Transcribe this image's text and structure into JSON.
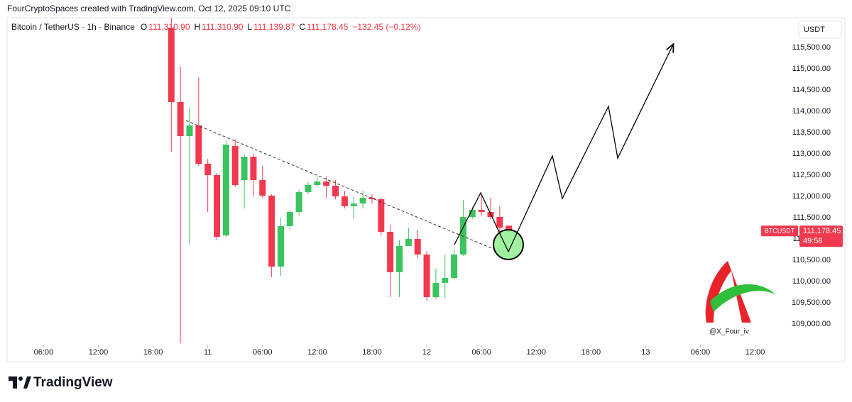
{
  "chart_data": {
    "type": "candlestick",
    "credit": "FourCryptoSpaces created with TradingView.com, Oct 12, 2025 09:10 UTC",
    "symbol": "Bitcoin / TetherUS · 1h · Binance",
    "ohlc_labels": [
      "O",
      "H",
      "L",
      "C"
    ],
    "ohlc_values": [
      "111,310.90",
      "111,310.90",
      "111,139.87",
      "111,178.45"
    ],
    "change": "−132.45 (−0.12%)",
    "currency": "USDT",
    "ticker": "BTCUSDT",
    "last_price": {
      "value": 111178.45,
      "label": "111,178.45"
    },
    "countdown": "49:58",
    "watermark": "@X_Four_iv",
    "brand": "TradingView",
    "up_color": "#3cc35e",
    "down_color": "#f0394f",
    "x": [
      20,
      21,
      22,
      23,
      24,
      25,
      26,
      27,
      28,
      29,
      30,
      31,
      32,
      33,
      34,
      35,
      36,
      37,
      38,
      39,
      40,
      41,
      42,
      43,
      44,
      45,
      46,
      47,
      48,
      49,
      50,
      51,
      52,
      53,
      54,
      55,
      56,
      57
    ],
    "open": [
      115966,
      114217,
      113417,
      113667,
      112767,
      112500,
      111083,
      113183,
      112383,
      112933,
      112383,
      112017,
      110350,
      111300,
      111633,
      112100,
      112267,
      112350,
      112250,
      112000,
      111767,
      111833,
      111967,
      111933,
      111167,
      110217,
      110833,
      111000,
      110633,
      109633,
      109967,
      110083,
      110633,
      111517,
      111683,
      111633,
      111517,
      111310.9
    ],
    "high": [
      116217,
      115050,
      114100,
      114800,
      112883,
      112550,
      113300,
      113350,
      113000,
      113000,
      112717,
      112050,
      111500,
      111667,
      112167,
      112333,
      112467,
      112467,
      112383,
      112133,
      112000,
      112133,
      112050,
      111967,
      111333,
      110967,
      111267,
      111217,
      110717,
      110300,
      110633,
      110750,
      111917,
      111767,
      112050,
      111967,
      111767,
      111310.9
    ],
    "low": [
      113050,
      108550,
      110850,
      112717,
      111633,
      110967,
      111050,
      112217,
      111717,
      112000,
      111967,
      110100,
      110133,
      111217,
      111550,
      112050,
      112217,
      111967,
      111933,
      111717,
      111467,
      111717,
      111833,
      111083,
      109633,
      109633,
      110883,
      110550,
      109550,
      109583,
      109600,
      110050,
      110600,
      111467,
      111550,
      111467,
      111167,
      111139.87
    ],
    "close": [
      114217,
      113417,
      113667,
      112767,
      112500,
      111050,
      113217,
      112267,
      112933,
      112383,
      112017,
      110350,
      111300,
      111633,
      112100,
      112267,
      112350,
      112250,
      112000,
      111767,
      111833,
      111967,
      111933,
      111167,
      110217,
      110833,
      111000,
      110633,
      109633,
      109967,
      110083,
      110633,
      111517,
      111683,
      111633,
      111517,
      111267,
      111178.45
    ],
    "xlim": [
      2,
      88
    ],
    "xticks": [
      {
        "value": 6,
        "label": "06:00"
      },
      {
        "value": 12,
        "label": "12:00"
      },
      {
        "value": 18,
        "label": "18:00"
      },
      {
        "value": 24,
        "label": "11"
      },
      {
        "value": 30,
        "label": "06:00"
      },
      {
        "value": 36,
        "label": "12:00"
      },
      {
        "value": 42,
        "label": "18:00"
      },
      {
        "value": 48,
        "label": "12"
      },
      {
        "value": 54,
        "label": "06:00"
      },
      {
        "value": 60,
        "label": "12:00"
      },
      {
        "value": 66,
        "label": "18:00"
      },
      {
        "value": 72,
        "label": "13"
      },
      {
        "value": 78,
        "label": "06:00"
      },
      {
        "value": 84,
        "label": "12:00"
      }
    ],
    "ylim": [
      108500,
      116250
    ],
    "yticks": [
      {
        "value": 109000,
        "label": "109,000.00"
      },
      {
        "value": 109500,
        "label": "109,500.00"
      },
      {
        "value": 110000,
        "label": "110,000.00"
      },
      {
        "value": 110500,
        "label": "110,500.00"
      },
      {
        "value": 111000,
        "label": "111,000.00"
      },
      {
        "value": 111500,
        "label": "111,500.00"
      },
      {
        "value": 112000,
        "label": "112,000.00"
      },
      {
        "value": 112500,
        "label": "112,500.00"
      },
      {
        "value": 113000,
        "label": "113,000.00"
      },
      {
        "value": 113500,
        "label": "113,500.00"
      },
      {
        "value": 114000,
        "label": "114,000.00"
      },
      {
        "value": 114500,
        "label": "114,500.00"
      },
      {
        "value": 115000,
        "label": "115,000.00"
      },
      {
        "value": 115500,
        "label": "115,500.00"
      }
    ]
  }
}
